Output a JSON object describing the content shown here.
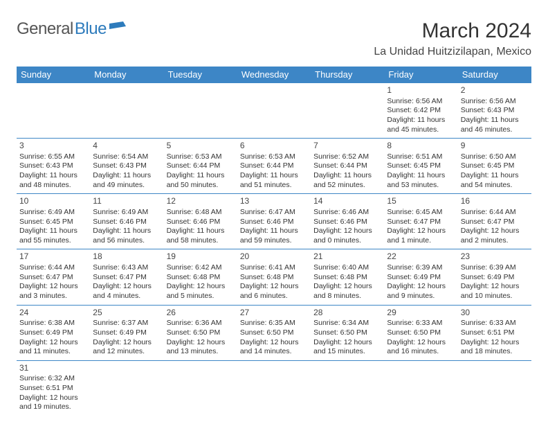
{
  "logo": {
    "general": "General",
    "blue": "Blue"
  },
  "title": "March 2024",
  "location": "La Unidad Huitzizilapan, Mexico",
  "colors": {
    "header_bg": "#3d86c6",
    "header_text": "#ffffff",
    "border": "#3d86c6",
    "logo_blue": "#2d7bbc",
    "logo_gray": "#555555",
    "text": "#333333"
  },
  "weekdays": [
    "Sunday",
    "Monday",
    "Tuesday",
    "Wednesday",
    "Thursday",
    "Friday",
    "Saturday"
  ],
  "weeks": [
    [
      null,
      null,
      null,
      null,
      null,
      {
        "n": "1",
        "sr": "Sunrise: 6:56 AM",
        "ss": "Sunset: 6:42 PM",
        "dl": "Daylight: 11 hours and 45 minutes."
      },
      {
        "n": "2",
        "sr": "Sunrise: 6:56 AM",
        "ss": "Sunset: 6:43 PM",
        "dl": "Daylight: 11 hours and 46 minutes."
      }
    ],
    [
      {
        "n": "3",
        "sr": "Sunrise: 6:55 AM",
        "ss": "Sunset: 6:43 PM",
        "dl": "Daylight: 11 hours and 48 minutes."
      },
      {
        "n": "4",
        "sr": "Sunrise: 6:54 AM",
        "ss": "Sunset: 6:43 PM",
        "dl": "Daylight: 11 hours and 49 minutes."
      },
      {
        "n": "5",
        "sr": "Sunrise: 6:53 AM",
        "ss": "Sunset: 6:44 PM",
        "dl": "Daylight: 11 hours and 50 minutes."
      },
      {
        "n": "6",
        "sr": "Sunrise: 6:53 AM",
        "ss": "Sunset: 6:44 PM",
        "dl": "Daylight: 11 hours and 51 minutes."
      },
      {
        "n": "7",
        "sr": "Sunrise: 6:52 AM",
        "ss": "Sunset: 6:44 PM",
        "dl": "Daylight: 11 hours and 52 minutes."
      },
      {
        "n": "8",
        "sr": "Sunrise: 6:51 AM",
        "ss": "Sunset: 6:45 PM",
        "dl": "Daylight: 11 hours and 53 minutes."
      },
      {
        "n": "9",
        "sr": "Sunrise: 6:50 AM",
        "ss": "Sunset: 6:45 PM",
        "dl": "Daylight: 11 hours and 54 minutes."
      }
    ],
    [
      {
        "n": "10",
        "sr": "Sunrise: 6:49 AM",
        "ss": "Sunset: 6:45 PM",
        "dl": "Daylight: 11 hours and 55 minutes."
      },
      {
        "n": "11",
        "sr": "Sunrise: 6:49 AM",
        "ss": "Sunset: 6:46 PM",
        "dl": "Daylight: 11 hours and 56 minutes."
      },
      {
        "n": "12",
        "sr": "Sunrise: 6:48 AM",
        "ss": "Sunset: 6:46 PM",
        "dl": "Daylight: 11 hours and 58 minutes."
      },
      {
        "n": "13",
        "sr": "Sunrise: 6:47 AM",
        "ss": "Sunset: 6:46 PM",
        "dl": "Daylight: 11 hours and 59 minutes."
      },
      {
        "n": "14",
        "sr": "Sunrise: 6:46 AM",
        "ss": "Sunset: 6:46 PM",
        "dl": "Daylight: 12 hours and 0 minutes."
      },
      {
        "n": "15",
        "sr": "Sunrise: 6:45 AM",
        "ss": "Sunset: 6:47 PM",
        "dl": "Daylight: 12 hours and 1 minute."
      },
      {
        "n": "16",
        "sr": "Sunrise: 6:44 AM",
        "ss": "Sunset: 6:47 PM",
        "dl": "Daylight: 12 hours and 2 minutes."
      }
    ],
    [
      {
        "n": "17",
        "sr": "Sunrise: 6:44 AM",
        "ss": "Sunset: 6:47 PM",
        "dl": "Daylight: 12 hours and 3 minutes."
      },
      {
        "n": "18",
        "sr": "Sunrise: 6:43 AM",
        "ss": "Sunset: 6:47 PM",
        "dl": "Daylight: 12 hours and 4 minutes."
      },
      {
        "n": "19",
        "sr": "Sunrise: 6:42 AM",
        "ss": "Sunset: 6:48 PM",
        "dl": "Daylight: 12 hours and 5 minutes."
      },
      {
        "n": "20",
        "sr": "Sunrise: 6:41 AM",
        "ss": "Sunset: 6:48 PM",
        "dl": "Daylight: 12 hours and 6 minutes."
      },
      {
        "n": "21",
        "sr": "Sunrise: 6:40 AM",
        "ss": "Sunset: 6:48 PM",
        "dl": "Daylight: 12 hours and 8 minutes."
      },
      {
        "n": "22",
        "sr": "Sunrise: 6:39 AM",
        "ss": "Sunset: 6:49 PM",
        "dl": "Daylight: 12 hours and 9 minutes."
      },
      {
        "n": "23",
        "sr": "Sunrise: 6:39 AM",
        "ss": "Sunset: 6:49 PM",
        "dl": "Daylight: 12 hours and 10 minutes."
      }
    ],
    [
      {
        "n": "24",
        "sr": "Sunrise: 6:38 AM",
        "ss": "Sunset: 6:49 PM",
        "dl": "Daylight: 12 hours and 11 minutes."
      },
      {
        "n": "25",
        "sr": "Sunrise: 6:37 AM",
        "ss": "Sunset: 6:49 PM",
        "dl": "Daylight: 12 hours and 12 minutes."
      },
      {
        "n": "26",
        "sr": "Sunrise: 6:36 AM",
        "ss": "Sunset: 6:50 PM",
        "dl": "Daylight: 12 hours and 13 minutes."
      },
      {
        "n": "27",
        "sr": "Sunrise: 6:35 AM",
        "ss": "Sunset: 6:50 PM",
        "dl": "Daylight: 12 hours and 14 minutes."
      },
      {
        "n": "28",
        "sr": "Sunrise: 6:34 AM",
        "ss": "Sunset: 6:50 PM",
        "dl": "Daylight: 12 hours and 15 minutes."
      },
      {
        "n": "29",
        "sr": "Sunrise: 6:33 AM",
        "ss": "Sunset: 6:50 PM",
        "dl": "Daylight: 12 hours and 16 minutes."
      },
      {
        "n": "30",
        "sr": "Sunrise: 6:33 AM",
        "ss": "Sunset: 6:51 PM",
        "dl": "Daylight: 12 hours and 18 minutes."
      }
    ],
    [
      {
        "n": "31",
        "sr": "Sunrise: 6:32 AM",
        "ss": "Sunset: 6:51 PM",
        "dl": "Daylight: 12 hours and 19 minutes."
      },
      null,
      null,
      null,
      null,
      null,
      null
    ]
  ]
}
